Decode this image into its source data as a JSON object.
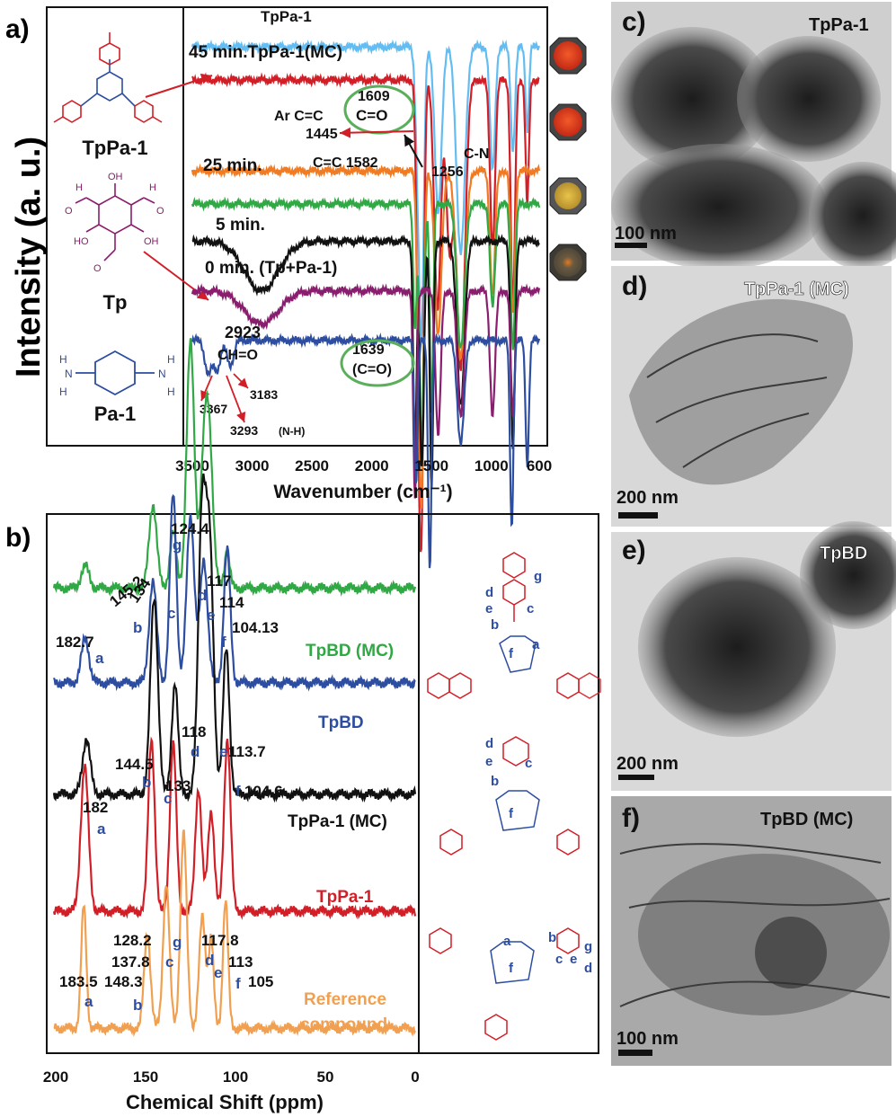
{
  "panels": {
    "a": "a)",
    "b": "b)",
    "c": "c)",
    "d": "d)",
    "e": "e)",
    "f": "f)"
  },
  "colors": {
    "light_blue": "#63bdf2",
    "red": "#d21f27",
    "orange": "#f07b22",
    "green": "#30a844",
    "black": "#111111",
    "purple": "#8a1e6e",
    "blue": "#2c4da0",
    "pale_orange": "#f0a050",
    "bracket": "#5ab05a"
  },
  "panel_a": {
    "ylabel": "Intensity (a. u.)",
    "xlabel": "Wavenumber (cm⁻¹)",
    "xticks": [
      "3500",
      "3000",
      "2500",
      "2000",
      "1500",
      "1000",
      "600"
    ],
    "structure_labels": [
      "TpPa-1",
      "Tp",
      "Pa-1"
    ],
    "series_labels": [
      "TpPa-1",
      "45 min.TpPa-1(MC)",
      "25 min.",
      "5 min.",
      "0 min. (Tp+Pa-1)"
    ],
    "annotations": {
      "arcc": "Ar C=C",
      "v1445": "1445",
      "v1609": "1609",
      "co1": "C=O",
      "cc1582": "C=C 1582",
      "v1256": "1256",
      "cn": "C-N",
      "v2923": "2923",
      "ch_o": "CH=O",
      "v1639": "1639",
      "co2": "(C=O)",
      "v3367": "3367",
      "v3293": "3293",
      "nh": "(N-H)",
      "v3183": "3183"
    }
  },
  "panel_b": {
    "xlabel": "Chemical Shift (ppm)",
    "xticks": [
      "200",
      "150",
      "100",
      "50",
      "0"
    ],
    "series_labels": {
      "tpbd_mc": "TpBD (MC)",
      "tpbd": "TpBD",
      "tppa_mc": "TpPa-1 (MC)",
      "tppa": "TpPa-1",
      "ref1": "Reference",
      "ref2": "compound"
    },
    "peak_labels": {
      "g1": "124.4",
      "v145_2": "145.2",
      "v134": "134",
      "v117": "117",
      "v114": "114",
      "v182_7": "182.7",
      "v104_13": "104.13",
      "v118": "118",
      "v144_5": "144.5",
      "v133": "133",
      "v113_7": "113.7",
      "v182": "182",
      "v104_6": "104.6",
      "v128_2": "128.2",
      "v117_8": "117.8",
      "v137_8": "137.8",
      "v113": "113",
      "v183_5": "183.5",
      "v148_3": "148.3",
      "v105": "105"
    },
    "letters": [
      "a",
      "b",
      "c",
      "d",
      "e",
      "f",
      "g"
    ]
  },
  "tem": {
    "c": {
      "title": "TpPa-1",
      "scale": "100 nm"
    },
    "d": {
      "title": "TpPa-1 (MC)",
      "scale": "200 nm"
    },
    "e": {
      "title": "TpBD",
      "scale": "200 nm"
    },
    "f": {
      "title": "TpBD (MC)",
      "scale": "100 nm"
    }
  },
  "chart_data": [
    {
      "type": "line",
      "title": "",
      "xlabel": "Wavenumber (cm⁻¹)",
      "ylabel": "Intensity (a. u.)",
      "xlim": [
        3500,
        600
      ],
      "series": [
        {
          "name": "TpPa-1",
          "color": "#63bdf2",
          "baseline": 0.93,
          "peaks": [
            [
              1609,
              0.35,
              30
            ],
            [
              1580,
              0.55,
              25
            ],
            [
              1445,
              0.4,
              40
            ],
            [
              1256,
              0.5,
              50
            ],
            [
              990,
              0.3,
              30
            ],
            [
              820,
              0.25,
              25
            ],
            [
              700,
              0.2,
              20
            ]
          ]
        },
        {
          "name": "45 min.TpPa-1(MC)",
          "color": "#d21f27",
          "baseline": 0.85,
          "peaks": [
            [
              1609,
              0.6,
              25
            ],
            [
              1582,
              0.9,
              25
            ],
            [
              1450,
              0.55,
              40
            ],
            [
              1350,
              0.4,
              40
            ],
            [
              1256,
              0.7,
              50
            ],
            [
              990,
              0.4,
              30
            ],
            [
              820,
              0.55,
              25
            ],
            [
              700,
              0.3,
              20
            ]
          ]
        },
        {
          "name": "25 min.",
          "color": "#f07b22",
          "baseline": 0.63,
          "peaks": [
            [
              1609,
              0.3,
              25
            ],
            [
              1582,
              0.7,
              25
            ],
            [
              1445,
              0.4,
              40
            ],
            [
              1256,
              0.45,
              50
            ],
            [
              990,
              0.3,
              30
            ],
            [
              820,
              0.35,
              25
            ]
          ]
        },
        {
          "name": "5 min.",
          "color": "#30a844",
          "baseline": 0.55,
          "peaks": [
            [
              1639,
              0.3,
              20
            ],
            [
              1582,
              0.6,
              25
            ],
            [
              1500,
              0.5,
              20
            ],
            [
              1256,
              0.35,
              45
            ],
            [
              990,
              0.25,
              30
            ],
            [
              820,
              0.35,
              25
            ]
          ]
        },
        {
          "name": "0 min. (Tp+Pa-1)",
          "color": "#111111",
          "baseline": 0.46,
          "peaks": [
            [
              2923,
              0.12,
              200
            ],
            [
              1639,
              0.5,
              20
            ],
            [
              1582,
              0.55,
              25
            ],
            [
              1500,
              0.6,
              20
            ],
            [
              1256,
              0.4,
              45
            ],
            [
              820,
              0.5,
              25
            ]
          ]
        },
        {
          "name": "Tp",
          "color": "#8a1e6e",
          "baseline": 0.34,
          "peaks": [
            [
              2923,
              0.08,
              200
            ],
            [
              1639,
              0.5,
              20
            ],
            [
              1445,
              0.35,
              30
            ],
            [
              1256,
              0.3,
              40
            ],
            [
              990,
              0.3,
              30
            ],
            [
              820,
              0.3,
              25
            ]
          ]
        },
        {
          "name": "Pa-1",
          "color": "#2c4da0",
          "baseline": 0.22,
          "peaks": [
            [
              3367,
              0.08,
              40
            ],
            [
              3293,
              0.07,
              40
            ],
            [
              3183,
              0.06,
              40
            ],
            [
              1630,
              0.35,
              20
            ],
            [
              1515,
              0.55,
              20
            ],
            [
              1256,
              0.25,
              40
            ],
            [
              830,
              0.45,
              20
            ],
            [
              700,
              0.3,
              20
            ]
          ]
        }
      ]
    },
    {
      "type": "line",
      "title": "",
      "xlabel": "Chemical Shift (ppm)",
      "xlim": [
        200,
        0
      ],
      "series": [
        {
          "name": "TpBD (MC)",
          "color": "#30a844",
          "baseline": 0.88,
          "peaks": [
            [
              182.7,
              0.04,
              3
            ],
            [
              145.2,
              0.15,
              3
            ],
            [
              134,
              0.1,
              2.5
            ],
            [
              124.4,
              0.44,
              3
            ],
            [
              117,
              0.2,
              3
            ],
            [
              114,
              0.24,
              3
            ],
            [
              104.13,
              0.07,
              2
            ]
          ]
        },
        {
          "name": "TpBD",
          "color": "#2c4da0",
          "baseline": 0.71,
          "peaks": [
            [
              182.7,
              0.08,
              3
            ],
            [
              145.2,
              0.18,
              3
            ],
            [
              134,
              0.34,
              2.5
            ],
            [
              124.4,
              0.3,
              3
            ],
            [
              117,
              0.22,
              3
            ],
            [
              104.13,
              0.24,
              2.5
            ]
          ]
        },
        {
          "name": "TpPa-1 (MC)",
          "color": "#111111",
          "baseline": 0.51,
          "peaks": [
            [
              182,
              0.1,
              3
            ],
            [
              144.5,
              0.35,
              3
            ],
            [
              133,
              0.2,
              2.5
            ],
            [
              118,
              0.5,
              3
            ],
            [
              113.7,
              0.42,
              3
            ],
            [
              104.6,
              0.26,
              2.5
            ]
          ]
        },
        {
          "name": "TpPa-1",
          "color": "#d21f27",
          "baseline": 0.3,
          "peaks": [
            [
              183,
              0.26,
              3
            ],
            [
              146,
              0.31,
              2.5
            ],
            [
              134,
              0.3,
              2.5
            ],
            [
              120,
              0.22,
              2.5
            ],
            [
              113,
              0.18,
              2.5
            ],
            [
              104,
              0.31,
              2.5
            ]
          ]
        },
        {
          "name": "Reference compound",
          "color": "#f0a050",
          "baseline": 0.09,
          "peaks": [
            [
              183.5,
              0.22,
              2
            ],
            [
              148.3,
              0.17,
              2.5
            ],
            [
              137.8,
              0.26,
              2.5
            ],
            [
              128.2,
              0.35,
              2.5
            ],
            [
              117.8,
              0.2,
              2.5
            ],
            [
              113,
              0.16,
              2
            ],
            [
              105,
              0.23,
              2
            ]
          ]
        }
      ]
    }
  ]
}
